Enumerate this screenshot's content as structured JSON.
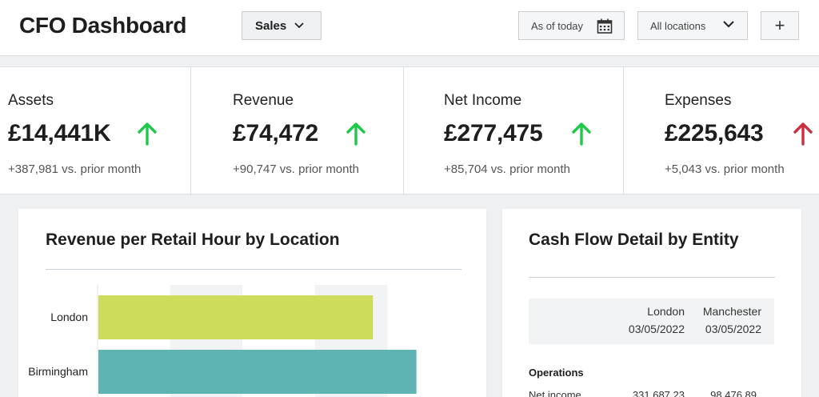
{
  "header": {
    "title": "CFO Dashboard",
    "view_select": "Sales",
    "date_filter": "As of today",
    "location_filter": "All locations",
    "add_label": "+"
  },
  "kpis": [
    {
      "label": "Assets",
      "value": "£14,441K",
      "trend": "up",
      "delta": "+387,981 vs. prior month"
    },
    {
      "label": "Revenue",
      "value": "£74,472",
      "trend": "up",
      "delta": "+90,747 vs. prior month"
    },
    {
      "label": "Net Income",
      "value": "£277,475",
      "trend": "up",
      "delta": "+85,704 vs. prior month"
    },
    {
      "label": "Expenses",
      "value": "£225,643",
      "trend": "up-negative",
      "delta": "+5,043 vs. prior month"
    }
  ],
  "colors": {
    "up": "#1ec94a",
    "up-negative": "#c9303f",
    "bar_london": "#cedc5c",
    "bar_birmingham": "#5fb3b3"
  },
  "revenue_chart": {
    "title": "Revenue per Retail Hour by Location",
    "chart_data": {
      "type": "bar",
      "orientation": "horizontal",
      "categories": [
        "London",
        "Birmingham"
      ],
      "values": [
        76,
        88
      ],
      "xlim": [
        0,
        100
      ],
      "grid": true
    }
  },
  "cash_flow": {
    "title": "Cash Flow Detail by Entity",
    "columns": [
      {
        "name": "London",
        "date": "03/05/2022"
      },
      {
        "name": "Manchester",
        "date": "03/05/2022"
      }
    ],
    "section": "Operations",
    "rows": [
      {
        "label": "Net income",
        "values": [
          "331,687.23",
          "98,476.89"
        ]
      }
    ]
  }
}
